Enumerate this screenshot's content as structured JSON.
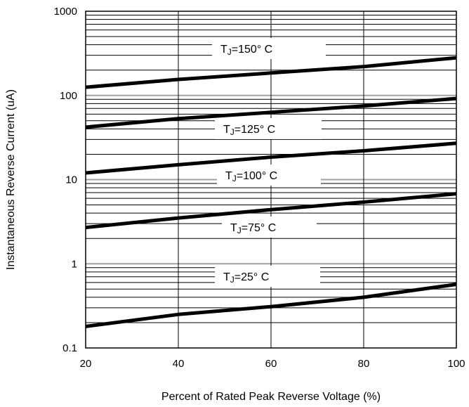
{
  "chart_data": {
    "type": "line",
    "title": "",
    "xlabel": "Percent of Rated Peak Reverse Voltage (%)",
    "ylabel": "Instantaneous Reverse Current (uA)",
    "xscale": "linear",
    "yscale": "log",
    "xlim": [
      20,
      100
    ],
    "ylim": [
      0.1,
      1000
    ],
    "x_ticks": [
      20,
      40,
      60,
      80,
      100
    ],
    "y_ticks": [
      0.1,
      1,
      10,
      100,
      1000
    ],
    "x_tick_labels": [
      "20",
      "40",
      "60",
      "80",
      "100"
    ],
    "y_tick_labels": [
      "0.1",
      "1",
      "10",
      "100",
      "1000"
    ],
    "grid": true,
    "series": [
      {
        "name": "TJ=150° C",
        "label": {
          "main": "T",
          "sub": "J",
          "rest": "=150° C"
        },
        "x": [
          20,
          40,
          60,
          80,
          100
        ],
        "y": [
          125,
          155,
          185,
          220,
          280
        ]
      },
      {
        "name": "TJ=125° C",
        "label": {
          "main": "T",
          "sub": "J",
          "rest": "=125° C"
        },
        "x": [
          20,
          40,
          60,
          80,
          100
        ],
        "y": [
          42,
          53,
          63,
          75,
          92
        ]
      },
      {
        "name": "TJ=100° C",
        "label": {
          "main": "T",
          "sub": "J",
          "rest": "=100° C"
        },
        "x": [
          20,
          40,
          60,
          80,
          100
        ],
        "y": [
          12,
          15,
          18.5,
          22,
          27
        ]
      },
      {
        "name": "TJ=75° C",
        "label": {
          "main": "T",
          "sub": "J",
          "rest": "=75° C"
        },
        "x": [
          20,
          40,
          60,
          80,
          100
        ],
        "y": [
          2.7,
          3.5,
          4.4,
          5.4,
          6.8
        ]
      },
      {
        "name": "TJ=25° C",
        "label": {
          "main": "T",
          "sub": "J",
          "rest": "=25° C"
        },
        "x": [
          20,
          40,
          60,
          80,
          100
        ],
        "y": [
          0.18,
          0.25,
          0.31,
          0.4,
          0.57
        ]
      }
    ],
    "colors": {
      "line": "#000000",
      "grid": "#000000",
      "decade_grid": "#a0a0a0"
    }
  }
}
